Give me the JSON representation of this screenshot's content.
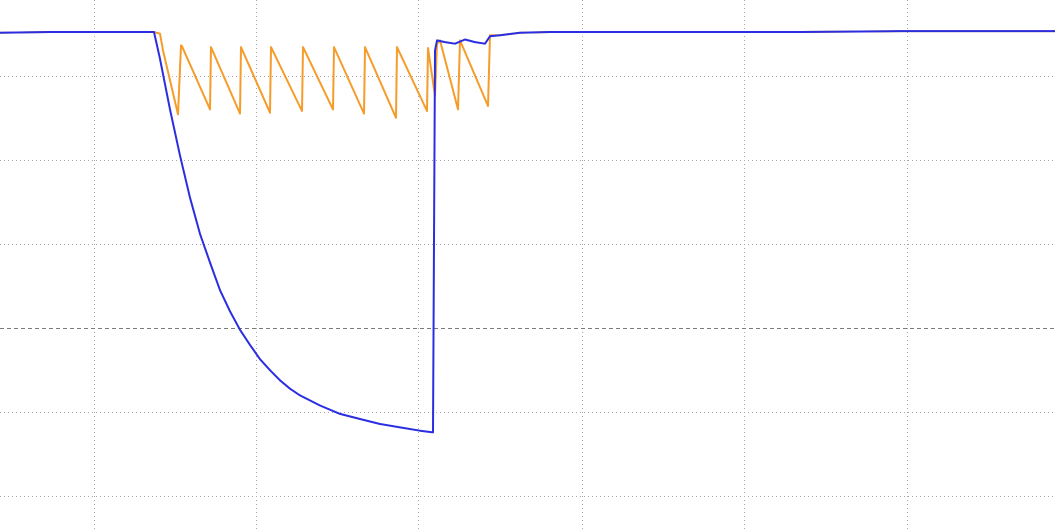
{
  "chart_data": {
    "type": "line",
    "title": "",
    "xlabel": "",
    "ylabel": "",
    "xlim": [
      0,
      10.55
    ],
    "ylim": [
      -0.4,
      5.9
    ],
    "grid": true,
    "legend": "none",
    "x_gridlines": [
      0.94,
      2.56,
      4.18,
      5.82,
      7.44,
      9.07
    ],
    "y_gridlines": [
      0.0,
      1.0,
      2.0,
      3.0,
      4.0,
      5.0
    ],
    "y_center_line": 2.0,
    "series": [
      {
        "color": "#f59c2b",
        "points": [
          [
            0.0,
            5.51
          ],
          [
            0.5,
            5.52
          ],
          [
            1.0,
            5.52
          ],
          [
            1.54,
            5.52
          ],
          [
            1.6,
            5.5
          ],
          [
            1.63,
            5.3
          ],
          [
            1.78,
            4.54
          ],
          [
            1.81,
            5.36
          ],
          [
            1.82,
            5.35
          ],
          [
            2.1,
            4.6
          ],
          [
            2.11,
            5.34
          ],
          [
            2.4,
            4.55
          ],
          [
            2.41,
            5.34
          ],
          [
            2.7,
            4.56
          ],
          [
            2.71,
            5.34
          ],
          [
            3.02,
            4.58
          ],
          [
            3.03,
            5.34
          ],
          [
            3.33,
            4.6
          ],
          [
            3.34,
            5.34
          ],
          [
            3.64,
            4.55
          ],
          [
            3.65,
            5.34
          ],
          [
            3.96,
            4.5
          ],
          [
            3.97,
            5.34
          ],
          [
            4.27,
            4.58
          ],
          [
            4.28,
            5.33
          ],
          [
            4.35,
            4.76
          ],
          [
            4.37,
            5.38
          ],
          [
            4.4,
            5.42
          ],
          [
            4.58,
            4.6
          ],
          [
            4.6,
            5.42
          ],
          [
            4.88,
            4.64
          ],
          [
            4.9,
            5.48
          ],
          [
            5.0,
            5.48
          ],
          [
            5.2,
            5.51
          ],
          [
            5.5,
            5.52
          ],
          [
            6.0,
            5.52
          ],
          [
            7.0,
            5.52
          ],
          [
            8.0,
            5.52
          ],
          [
            9.0,
            5.53
          ],
          [
            10.55,
            5.53
          ]
        ]
      },
      {
        "color": "#2b2ee0",
        "points": [
          [
            0.0,
            5.51
          ],
          [
            0.5,
            5.52
          ],
          [
            1.0,
            5.52
          ],
          [
            1.54,
            5.52
          ],
          [
            1.6,
            5.2
          ],
          [
            1.7,
            4.6
          ],
          [
            1.8,
            4.05
          ],
          [
            1.9,
            3.55
          ],
          [
            2.0,
            3.12
          ],
          [
            2.1,
            2.78
          ],
          [
            2.2,
            2.45
          ],
          [
            2.3,
            2.2
          ],
          [
            2.4,
            1.98
          ],
          [
            2.5,
            1.8
          ],
          [
            2.6,
            1.63
          ],
          [
            2.7,
            1.5
          ],
          [
            2.8,
            1.38
          ],
          [
            2.9,
            1.28
          ],
          [
            3.0,
            1.2
          ],
          [
            3.2,
            1.08
          ],
          [
            3.4,
            0.98
          ],
          [
            3.6,
            0.92
          ],
          [
            3.8,
            0.86
          ],
          [
            4.0,
            0.82
          ],
          [
            4.2,
            0.78
          ],
          [
            4.33,
            0.76
          ],
          [
            4.35,
            5.3
          ],
          [
            4.37,
            5.42
          ],
          [
            4.45,
            5.4
          ],
          [
            4.55,
            5.38
          ],
          [
            4.65,
            5.43
          ],
          [
            4.75,
            5.4
          ],
          [
            4.85,
            5.38
          ],
          [
            4.9,
            5.47
          ],
          [
            5.0,
            5.48
          ],
          [
            5.2,
            5.51
          ],
          [
            5.5,
            5.52
          ],
          [
            6.0,
            5.52
          ],
          [
            7.0,
            5.52
          ],
          [
            8.0,
            5.52
          ],
          [
            9.0,
            5.53
          ],
          [
            10.55,
            5.53
          ]
        ]
      }
    ]
  }
}
